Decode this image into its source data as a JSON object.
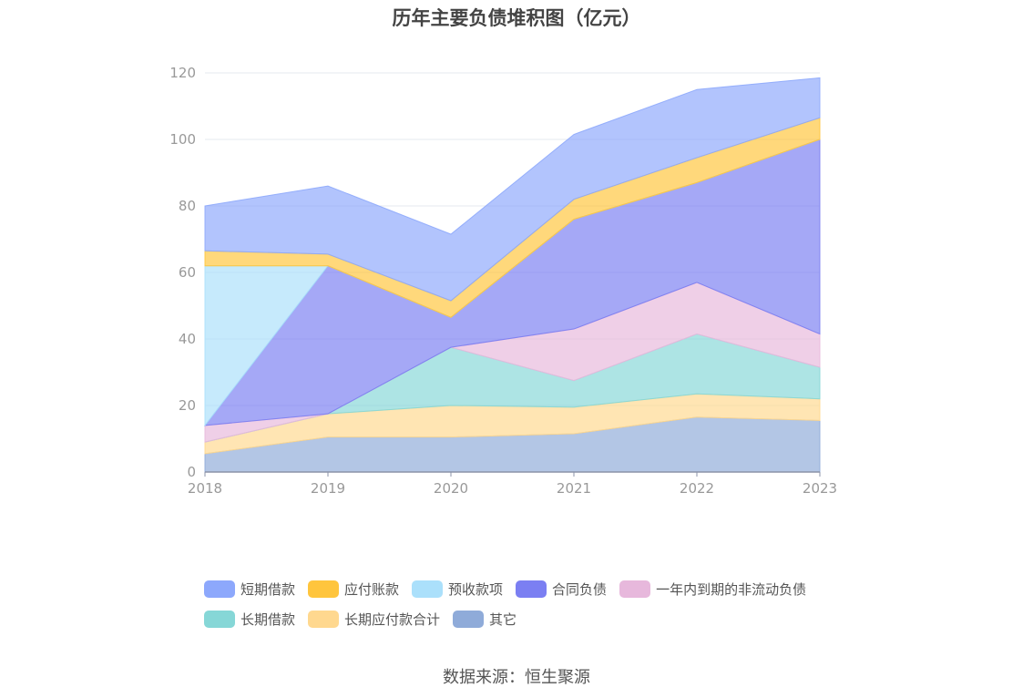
{
  "chart_data": {
    "type": "area",
    "stacked": true,
    "title": "历年主要负债堆积图（亿元）",
    "source": "数据来源：恒生聚源",
    "categories": [
      "2018",
      "2019",
      "2020",
      "2021",
      "2022",
      "2023"
    ],
    "ylim": [
      0,
      120
    ],
    "yticks": [
      "0",
      "20",
      "40",
      "60",
      "80",
      "100",
      "120"
    ],
    "grid": true,
    "legend_position": "bottom",
    "series": [
      {
        "name": "其它",
        "color": "#8fabd9",
        "values": [
          5.5,
          10.5,
          10.5,
          11.5,
          16.5,
          15.5
        ]
      },
      {
        "name": "长期应付款合计",
        "color": "#ffd88f",
        "values": [
          3.5,
          7,
          9.5,
          8,
          7,
          6.5
        ]
      },
      {
        "name": "长期借款",
        "color": "#86d7d7",
        "values": [
          0,
          0,
          17.5,
          8,
          18,
          9.5
        ]
      },
      {
        "name": "一年内到期的非流动负债",
        "color": "#e7b8dc",
        "values": [
          5,
          0,
          0,
          15.5,
          15.5,
          10
        ]
      },
      {
        "name": "合同负债",
        "color": "#7b7ff2",
        "values": [
          0,
          44.5,
          9,
          33,
          30,
          58.5
        ]
      },
      {
        "name": "预收款项",
        "color": "#abe0fb",
        "values": [
          48,
          0,
          0,
          0,
          0,
          0
        ]
      },
      {
        "name": "应付账款",
        "color": "#ffc53d",
        "values": [
          4.5,
          3.5,
          5,
          6,
          7.5,
          6.5
        ]
      },
      {
        "name": "短期借款",
        "color": "#8da8fc",
        "values": [
          13.5,
          20.5,
          20,
          19.5,
          20.5,
          12
        ]
      }
    ],
    "legend_rows": [
      [
        {
          "name": "短期借款",
          "color": "#8da8fc"
        },
        {
          "name": "应付账款",
          "color": "#ffc53d"
        },
        {
          "name": "预收款项",
          "color": "#abe0fb"
        },
        {
          "name": "合同负债",
          "color": "#7b7ff2"
        },
        {
          "name": "一年内到期的非流动负债",
          "color": "#e7b8dc"
        }
      ],
      [
        {
          "name": "长期借款",
          "color": "#86d7d7"
        },
        {
          "name": "长期应付款合计",
          "color": "#ffd88f"
        },
        {
          "name": "其它",
          "color": "#8fabd9"
        }
      ]
    ]
  }
}
